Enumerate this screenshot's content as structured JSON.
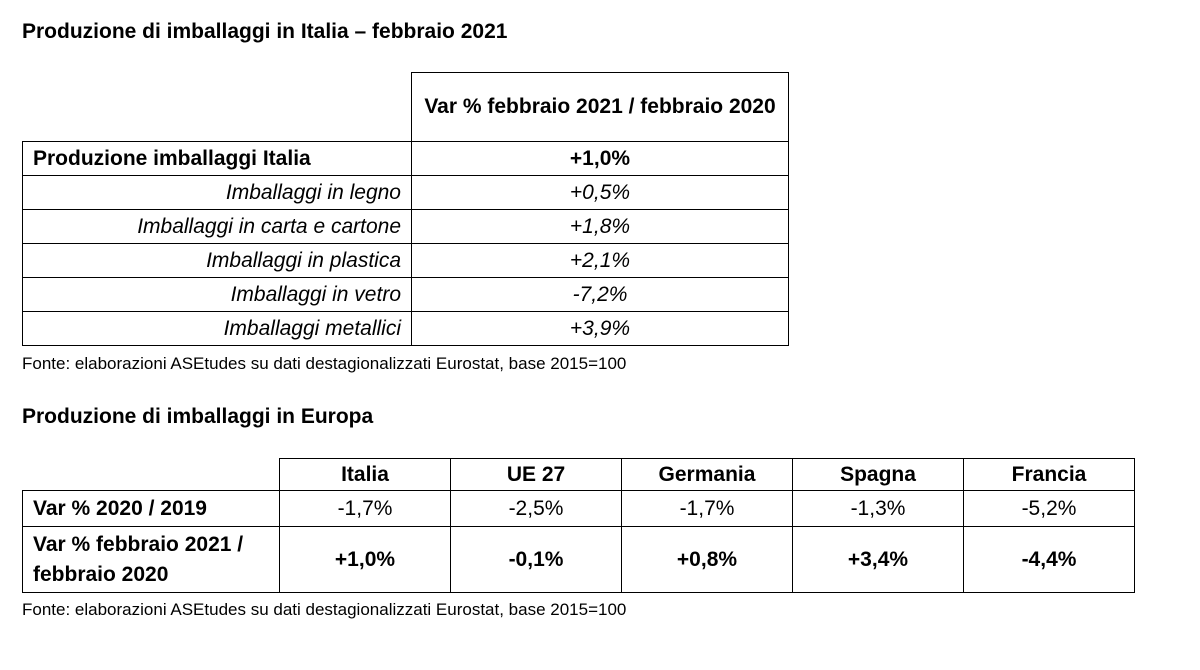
{
  "italy": {
    "title": "Produzione di imballaggi in Italia – febbraio 2021",
    "column_header": "Var % febbraio 2021 / febbraio 2020",
    "rows": [
      {
        "label": "Produzione imballaggi Italia",
        "value": "+1,0%"
      },
      {
        "label": "Imballaggi in legno",
        "value": "+0,5%"
      },
      {
        "label": "Imballaggi in carta e cartone",
        "value": "+1,8%"
      },
      {
        "label": "Imballaggi in plastica",
        "value": "+2,1%"
      },
      {
        "label": "Imballaggi in vetro",
        "value": "-7,2%"
      },
      {
        "label": "Imballaggi metallici",
        "value": "+3,9%"
      }
    ],
    "source": "Fonte: elaborazioni ASEtudes su dati destagionalizzati Eurostat, base 2015=100"
  },
  "europe": {
    "title": "Produzione di imballaggi in Europa",
    "columns": [
      "Italia",
      "UE 27",
      "Germania",
      "Spagna",
      "Francia"
    ],
    "rows": [
      {
        "label": "Var % 2020 / 2019",
        "values": [
          "-1,7%",
          "-2,5%",
          "-1,7%",
          "-1,3%",
          "-5,2%"
        ]
      },
      {
        "label": "Var % febbraio 2021 / febbraio 2020",
        "values": [
          "+1,0%",
          "-0,1%",
          "+0,8%",
          "+3,4%",
          "-4,4%"
        ]
      }
    ],
    "source": "Fonte: elaborazioni ASEtudes su dati destagionalizzati Eurostat, base 2015=100"
  }
}
